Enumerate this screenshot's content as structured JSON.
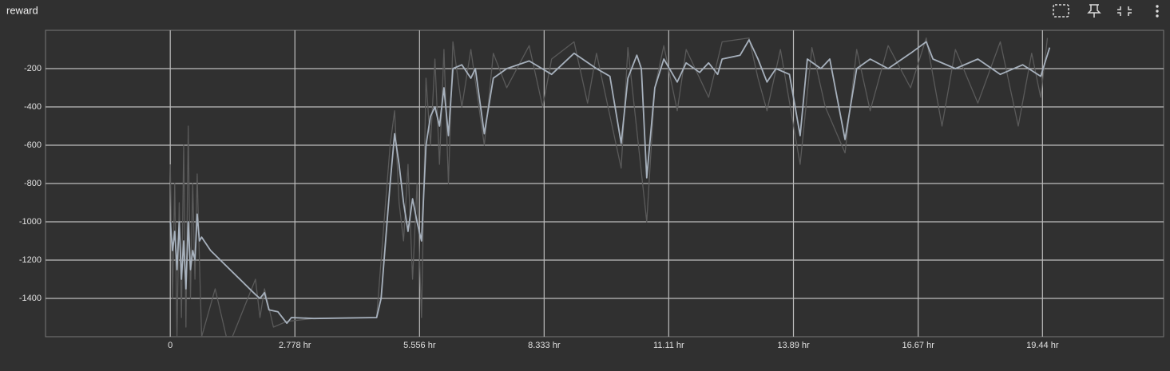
{
  "chart_data": {
    "type": "line",
    "title": "reward",
    "xlim": [
      -2.78,
      22.14
    ],
    "ylim": [
      -1600,
      0
    ],
    "xticks": [
      0,
      {
        "value": 2.778,
        "label": "2.778 hr"
      },
      {
        "value": 5.556,
        "label": "5.556 hr"
      },
      {
        "value": 8.333,
        "label": "8.333 hr"
      },
      {
        "value": 11.11,
        "label": "11.11 hr"
      },
      {
        "value": 13.89,
        "label": "13.89 hr"
      },
      {
        "value": 16.67,
        "label": "16.67 hr"
      },
      {
        "value": 19.44,
        "label": "19.44 hr"
      }
    ],
    "yticks": [
      -200,
      -400,
      -600,
      -800,
      -1000,
      -1200,
      -1400
    ],
    "grid": true,
    "series": [
      {
        "color": "#5a5a5a",
        "x": [
          0,
          0.05,
          0.1,
          0.15,
          0.2,
          0.25,
          0.3,
          0.35,
          0.4,
          0.45,
          0.5,
          0.55,
          0.6,
          0.65,
          0.7,
          1.0,
          1.3,
          1.9,
          2.0,
          2.1,
          2.3,
          2.6,
          3.2,
          4.6,
          4.7,
          4.8,
          4.9,
          5.0,
          5.1,
          5.2,
          5.3,
          5.4,
          5.5,
          5.6,
          5.7,
          5.8,
          5.9,
          6.0,
          6.1,
          6.2,
          6.3,
          6.5,
          6.7,
          7.0,
          7.2,
          7.5,
          8.0,
          8.3,
          8.5,
          9.0,
          9.3,
          9.5,
          10.05,
          10.2,
          10.62,
          10.8,
          11.0,
          11.3,
          11.5,
          12.0,
          12.3,
          12.9,
          13.1,
          13.3,
          13.6,
          14.04,
          14.3,
          14.6,
          15.04,
          15.3,
          15.6,
          16.0,
          16.5,
          16.85,
          17.2,
          17.5,
          18.0,
          18.5,
          18.9,
          19.2,
          19.4,
          19.55
        ],
        "values": [
          -700,
          -1400,
          -800,
          -1600,
          -900,
          -1500,
          -600,
          -1550,
          -500,
          -1400,
          -800,
          -1300,
          -750,
          -1200,
          -1600,
          -1350,
          -1650,
          -1300,
          -1500,
          -1350,
          -1550,
          -1520,
          -1505,
          -1500,
          -1200,
          -900,
          -600,
          -420,
          -900,
          -1100,
          -700,
          -1300,
          -800,
          -1500,
          -250,
          -600,
          -150,
          -700,
          -100,
          -800,
          -60,
          -400,
          -100,
          -600,
          -120,
          -300,
          -80,
          -400,
          -150,
          -60,
          -380,
          -120,
          -720,
          -90,
          -1000,
          -300,
          -80,
          -420,
          -100,
          -350,
          -60,
          -40,
          -250,
          -420,
          -100,
          -700,
          -90,
          -400,
          -640,
          -100,
          -420,
          -80,
          -300,
          -40,
          -500,
          -100,
          -380,
          -60,
          -500,
          -120,
          -350,
          -40
        ]
      },
      {
        "color": "#a7b1bd",
        "x": [
          0,
          0.05,
          0.1,
          0.15,
          0.2,
          0.25,
          0.3,
          0.35,
          0.4,
          0.45,
          0.5,
          0.55,
          0.6,
          0.65,
          0.7,
          0.9,
          1.9,
          2.0,
          2.1,
          2.2,
          2.4,
          2.6,
          2.7,
          3.2,
          4.6,
          4.7,
          4.8,
          4.9,
          5.0,
          5.1,
          5.2,
          5.3,
          5.4,
          5.5,
          5.6,
          5.7,
          5.8,
          5.9,
          6.0,
          6.1,
          6.2,
          6.3,
          6.5,
          6.7,
          6.8,
          7.0,
          7.2,
          7.5,
          8.0,
          8.5,
          9.0,
          9.5,
          9.8,
          10.05,
          10.2,
          10.4,
          10.5,
          10.62,
          10.8,
          11.0,
          11.3,
          11.5,
          11.8,
          12.0,
          12.2,
          12.3,
          12.7,
          12.9,
          13.1,
          13.3,
          13.5,
          13.8,
          14.04,
          14.2,
          14.5,
          14.7,
          15.04,
          15.3,
          15.6,
          16.0,
          16.5,
          16.85,
          17.0,
          17.5,
          18.0,
          18.5,
          19.0,
          19.4,
          19.6
        ],
        "values": [
          -1000,
          -1150,
          -1050,
          -1250,
          -1000,
          -1300,
          -1100,
          -1350,
          -1000,
          -1250,
          -1150,
          -1200,
          -960,
          -1100,
          -1080,
          -1150,
          -1380,
          -1400,
          -1370,
          -1460,
          -1470,
          -1530,
          -1500,
          -1505,
          -1500,
          -1400,
          -1100,
          -800,
          -540,
          -700,
          -900,
          -1050,
          -880,
          -1000,
          -1100,
          -600,
          -450,
          -400,
          -500,
          -300,
          -550,
          -200,
          -180,
          -250,
          -200,
          -540,
          -250,
          -200,
          -160,
          -230,
          -120,
          -200,
          -240,
          -590,
          -250,
          -130,
          -200,
          -770,
          -300,
          -150,
          -270,
          -170,
          -220,
          -170,
          -230,
          -150,
          -130,
          -50,
          -150,
          -270,
          -200,
          -230,
          -550,
          -150,
          -200,
          -150,
          -570,
          -200,
          -150,
          -200,
          -120,
          -60,
          -150,
          -200,
          -150,
          -230,
          -180,
          -240,
          -90
        ]
      }
    ]
  }
}
